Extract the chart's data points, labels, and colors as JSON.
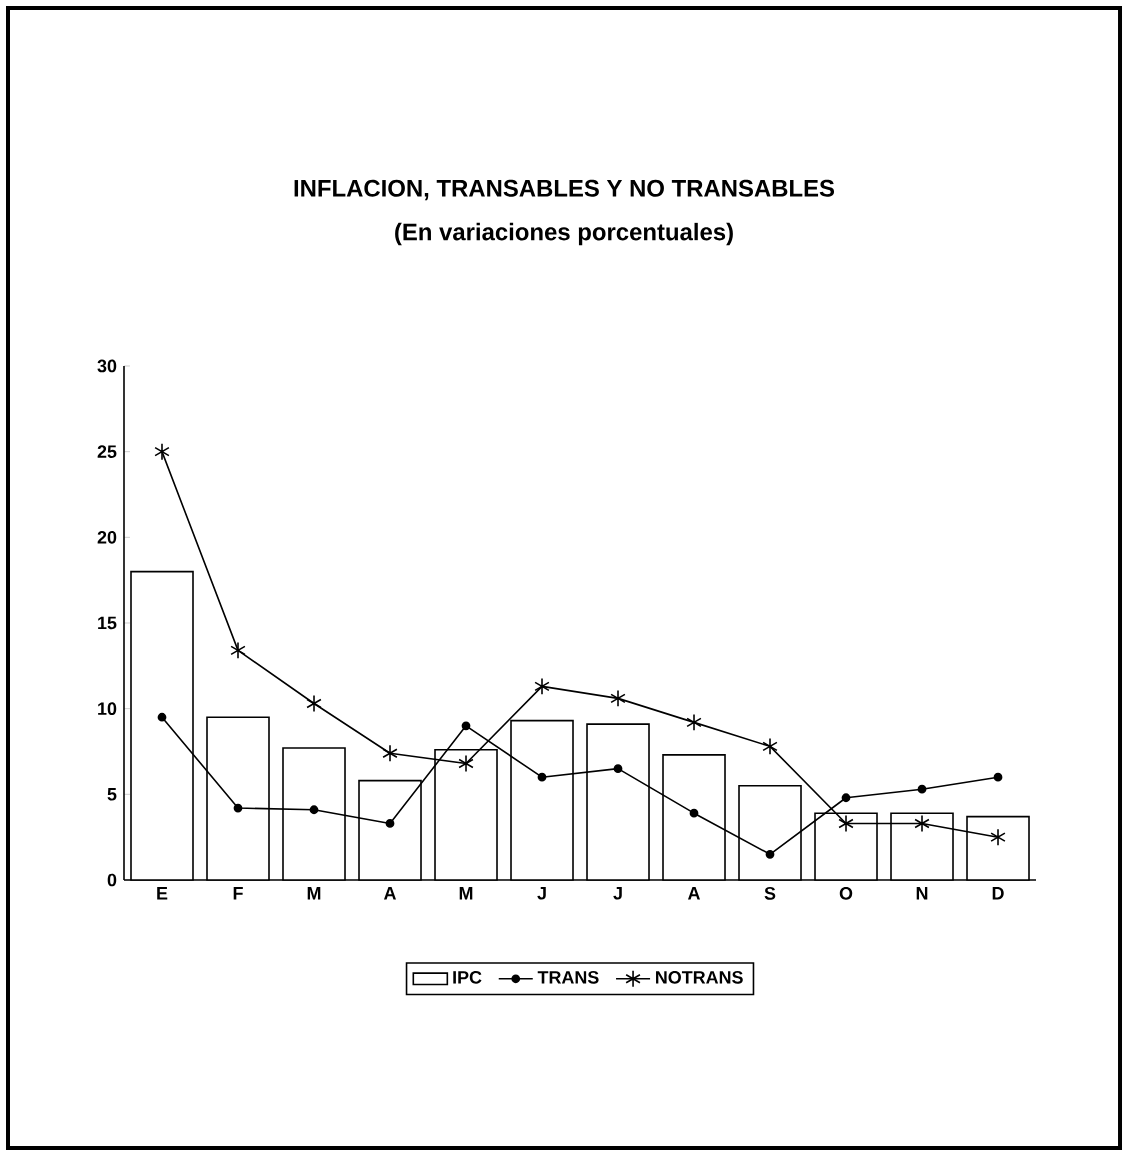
{
  "chart_data": {
    "type": "bar",
    "title": "INFLACION, TRANSABLES Y NO TRANSABLES",
    "subtitle": "(En variaciones porcentuales)",
    "categories": [
      "E",
      "F",
      "M",
      "A",
      "M",
      "J",
      "J",
      "A",
      "S",
      "O",
      "N",
      "D"
    ],
    "series": [
      {
        "name": "IPC",
        "type": "bar",
        "color": "#000000",
        "values": [
          18,
          9.5,
          7.7,
          5.8,
          7.6,
          9.3,
          9.1,
          7.3,
          5.5,
          3.9,
          3.9,
          3.7
        ]
      },
      {
        "name": "TRANS",
        "type": "line",
        "color": "#000000",
        "marker": "circle",
        "values": [
          9.5,
          4.2,
          4.1,
          3.3,
          9.0,
          6.0,
          6.5,
          3.9,
          1.5,
          4.8,
          5.3,
          6.0
        ]
      },
      {
        "name": "NOTRANS",
        "type": "line",
        "color": "#000000",
        "marker": "cross",
        "values": [
          25,
          13.4,
          10.3,
          7.4,
          6.8,
          11.3,
          10.6,
          9.2,
          7.8,
          3.3,
          3.3,
          2.5
        ]
      }
    ],
    "ylim": [
      0,
      30
    ],
    "yticks": [
      0,
      5,
      10,
      15,
      20,
      25,
      30
    ],
    "grid": false,
    "legend": "bottom"
  }
}
